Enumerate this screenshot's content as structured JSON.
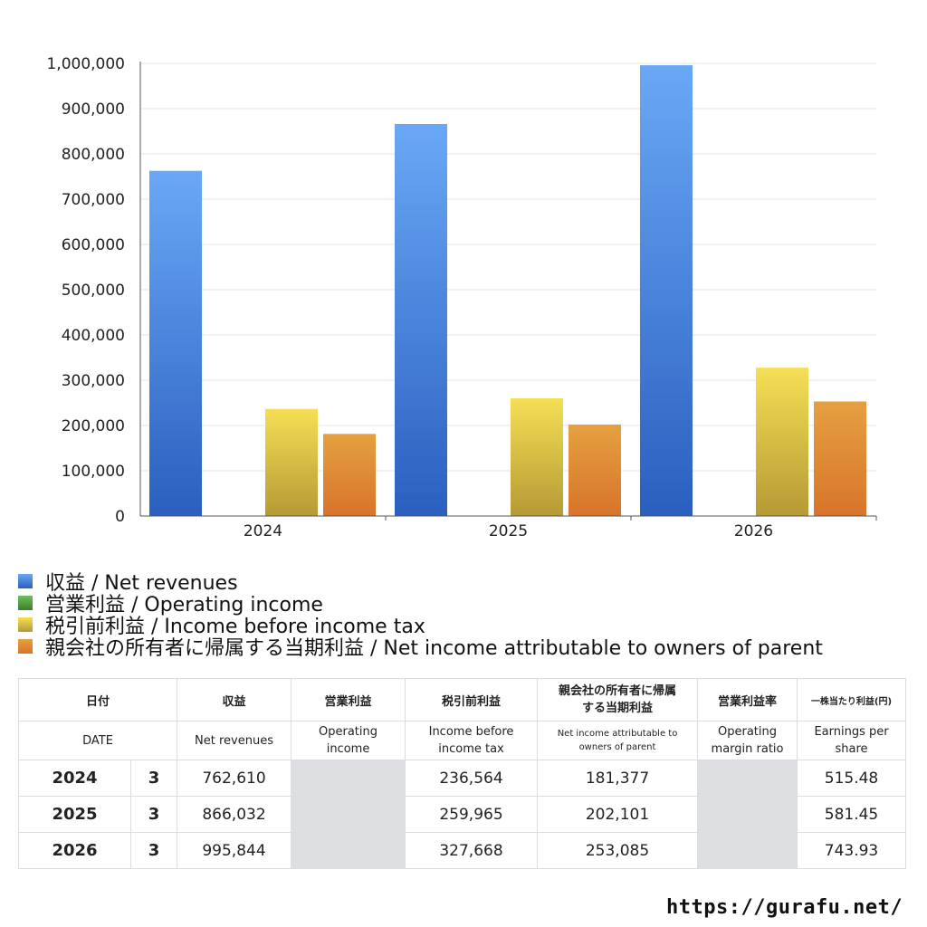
{
  "chart_data": {
    "type": "bar",
    "categories": [
      "2024",
      "2025",
      "2026"
    ],
    "series": [
      {
        "name": "収益 / Net revenues",
        "values": [
          762610,
          866032,
          995844
        ],
        "color": "#3f7bd9"
      },
      {
        "name": "営業利益 / Operating income",
        "values": [
          null,
          null,
          null
        ],
        "color": "#4f9a3c"
      },
      {
        "name": "税引前利益 / Income before income tax",
        "values": [
          236564,
          259965,
          327668
        ],
        "color": "#e0c23e"
      },
      {
        "name": "親会社の所有者に帰属する当期利益 / Net income attributable to owners of parent",
        "values": [
          181377,
          202101,
          253085
        ],
        "color": "#e0812f"
      }
    ],
    "ylim": [
      0,
      1000000
    ],
    "yticks": [
      "0",
      "100,000",
      "200,000",
      "300,000",
      "400,000",
      "500,000",
      "600,000",
      "700,000",
      "800,000",
      "900,000",
      "1,000,000"
    ],
    "grid": true,
    "legend": "bottom-left"
  },
  "table": {
    "header_jp": [
      "日付",
      "収益",
      "営業利益",
      "税引前利益",
      "親会社の所有者に帰属する当期利益",
      "営業利益率",
      "一株当たり利益(円)"
    ],
    "header_en": [
      "DATE",
      "Net revenues",
      "Operating income",
      "Income before income tax",
      "Net income attributable to owners of parent",
      "Operating margin ratio",
      "Earnings per share"
    ],
    "rows": [
      {
        "year": "2024",
        "month": "3",
        "revenue": "762,610",
        "op_income": "",
        "pretax": "236,564",
        "net_income": "181,377",
        "margin": "",
        "eps": "515.48"
      },
      {
        "year": "2025",
        "month": "3",
        "revenue": "866,032",
        "op_income": "",
        "pretax": "259,965",
        "net_income": "202,101",
        "margin": "",
        "eps": "581.45"
      },
      {
        "year": "2026",
        "month": "3",
        "revenue": "995,844",
        "op_income": "",
        "pretax": "327,668",
        "net_income": "253,085",
        "margin": "",
        "eps": "743.93"
      }
    ]
  },
  "site": "https://gurafu.net/"
}
